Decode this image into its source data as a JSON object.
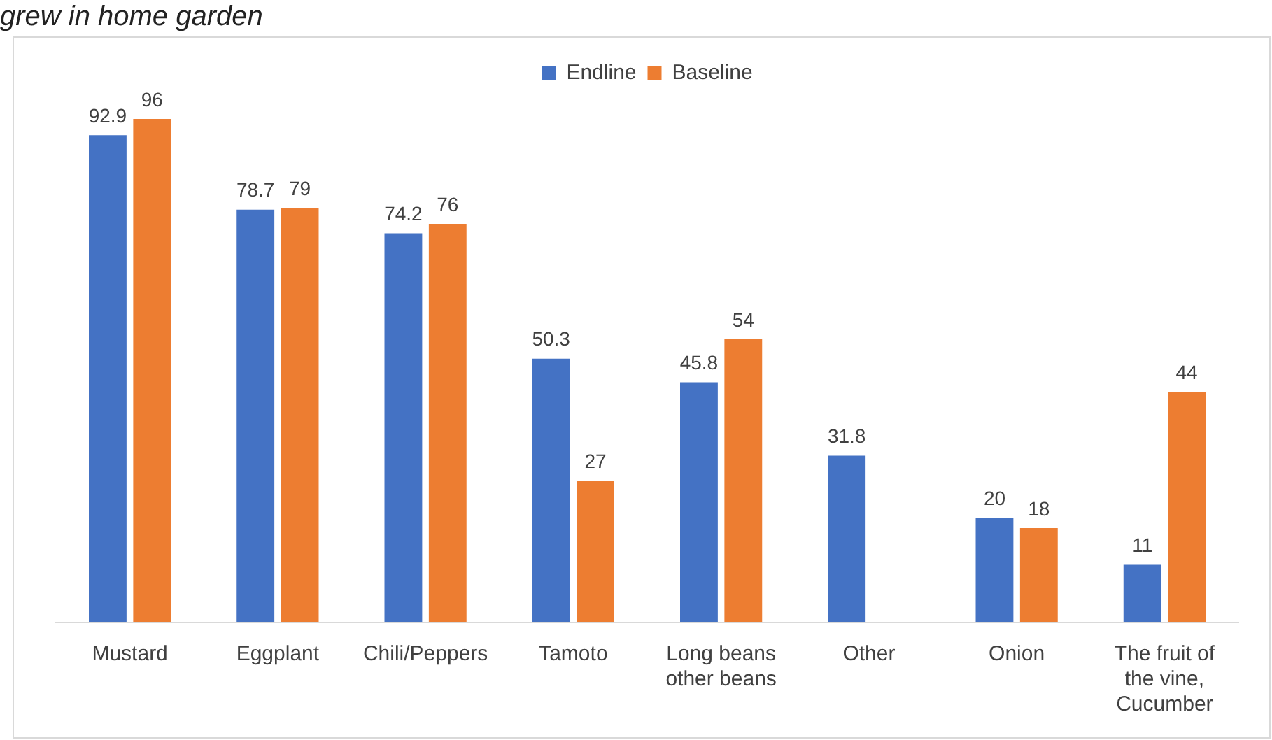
{
  "chart_data": {
    "type": "bar",
    "title": "grew in home garden",
    "categories": [
      "Mustard",
      "Eggplant",
      "Chili/Peppers",
      "Tamoto",
      "Long beans other beans",
      "Other",
      "Onion",
      "The fruit of the vine, Cucumber"
    ],
    "series": [
      {
        "name": "Endline",
        "color": "#4472c4",
        "values": [
          92.9,
          78.7,
          74.2,
          50.3,
          45.8,
          31.8,
          20,
          11
        ]
      },
      {
        "name": "Baseline",
        "color": "#ed7d31",
        "values": [
          96,
          79,
          76,
          27,
          54,
          null,
          18,
          44
        ]
      }
    ],
    "tick_labels": "x",
    "grid": false,
    "legend": "top",
    "data_labels": true
  }
}
